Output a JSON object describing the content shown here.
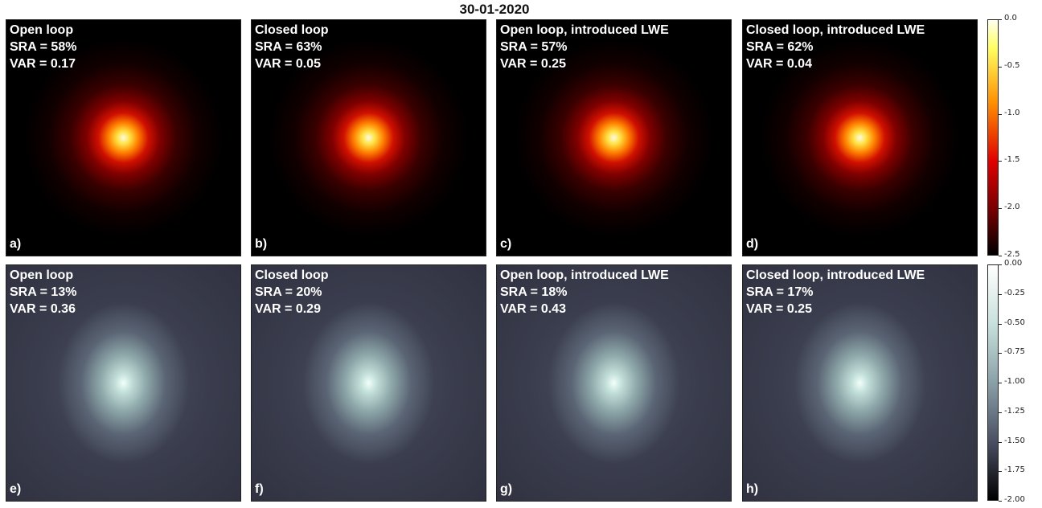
{
  "title": "30-01-2020",
  "rows": [
    {
      "style": "hot",
      "panels": [
        {
          "title": "Open loop",
          "sra": "SRA = 58%",
          "var": "VAR = 0.17",
          "letter": "a)"
        },
        {
          "title": "Closed loop",
          "sra": "SRA = 63%",
          "var": "VAR = 0.05",
          "letter": "b)"
        },
        {
          "title": "Open loop, introduced LWE",
          "sra": "SRA = 57%",
          "var": "VAR = 0.25",
          "letter": "c)"
        },
        {
          "title": "Closed loop, introduced LWE",
          "sra": "SRA = 62%",
          "var": "VAR = 0.04",
          "letter": "d)"
        }
      ],
      "colorbar": {
        "ticks": [
          {
            "value": 0,
            "label": "0.0"
          },
          -0.5,
          {
            "value": -1,
            "label": "-1.0"
          },
          -1.5,
          {
            "value": -2,
            "label": "-2.0"
          },
          -2.5
        ]
      }
    },
    {
      "style": "bone",
      "panels": [
        {
          "title": "Open loop",
          "sra": "SRA = 13%",
          "var": "VAR = 0.36",
          "letter": "e)"
        },
        {
          "title": "Closed loop",
          "sra": "SRA = 20%",
          "var": "VAR = 0.29",
          "letter": "f)"
        },
        {
          "title": "Open loop, introduced LWE",
          "sra": "SRA = 18%",
          "var": "VAR = 0.43",
          "letter": "g)"
        },
        {
          "title": "Closed loop, introduced LWE",
          "sra": "SRA = 17%",
          "var": "VAR = 0.25",
          "letter": "h)"
        }
      ],
      "colorbar": {
        "ticks": [
          {
            "value": 0,
            "label": "0.00"
          },
          -0.25,
          {
            "value": -0.5,
            "label": "-0.50"
          },
          -0.75,
          {
            "value": -1,
            "label": "-1.00"
          },
          -1.25,
          {
            "value": -1.5,
            "label": "-1.50"
          },
          -1.75,
          {
            "value": -2,
            "label": "-2.00"
          }
        ]
      }
    }
  ]
}
